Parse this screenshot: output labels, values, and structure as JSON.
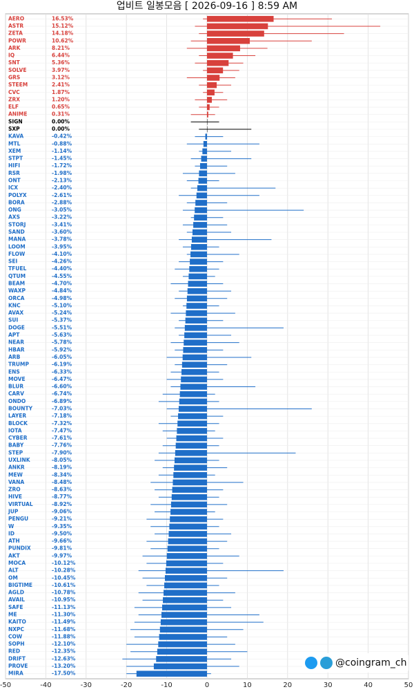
{
  "chart_data": {
    "type": "range_bar",
    "title": "업비트 일봉모음 [ 2026-09-16 ]  8:59 AM",
    "annotation": "@coingram_ch",
    "categories": [
      "AERO",
      "ASTR",
      "ZETA",
      "POWR",
      "ARK",
      "IQ",
      "SNT",
      "SOLVE",
      "GRS",
      "STEEM",
      "CVC",
      "ZRX",
      "ELF",
      "ANIME",
      "SIGN",
      "SXP",
      "KAVA",
      "MTL",
      "XEM",
      "STPT",
      "HIFI",
      "RSR",
      "ONT",
      "ICX",
      "POLYX",
      "BORA",
      "ONG",
      "AXS",
      "STORJ",
      "SAND",
      "MANA",
      "LOOM",
      "FLOW",
      "SEI",
      "TFUEL",
      "QTUM",
      "BEAM",
      "WAXP",
      "ORCA",
      "KNC",
      "AVAX",
      "SUI",
      "DOGE",
      "APT",
      "NEAR",
      "HBAR",
      "ARB",
      "TRUMP",
      "ENS",
      "MOVE",
      "BLUR",
      "CARV",
      "ONDO",
      "BOUNTY",
      "LAYER",
      "BLOCK",
      "IOTA",
      "CYBER",
      "BABY",
      "STEP",
      "UXLINK",
      "ANKR",
      "MEW",
      "VANA",
      "ZRO",
      "HIVE",
      "VIRTUAL",
      "JUP",
      "PENGU",
      "W",
      "ID",
      "ATH",
      "PUNDIX",
      "AKT",
      "MOCA",
      "ALT",
      "OM",
      "BIGTIME",
      "AGLD",
      "AVAIL",
      "SAFE",
      "ME",
      "KAITO",
      "NXPC",
      "COW",
      "SOPH",
      "RED",
      "DRIFT",
      "PROVE",
      "MIRA"
    ],
    "values": [
      16.53,
      15.12,
      14.18,
      10.62,
      8.21,
      6.44,
      5.36,
      3.97,
      3.12,
      2.41,
      1.87,
      1.2,
      0.65,
      0.31,
      0,
      0,
      -0.42,
      -0.88,
      -1.14,
      -1.45,
      -1.72,
      -1.98,
      -2.13,
      -2.4,
      -2.61,
      -2.88,
      -3.05,
      -3.22,
      -3.41,
      -3.6,
      -3.78,
      -3.95,
      -4.1,
      -4.26,
      -4.4,
      -4.55,
      -4.7,
      -4.84,
      -4.98,
      -5.1,
      -5.24,
      -5.37,
      -5.51,
      -5.63,
      -5.78,
      -5.92,
      -6.05,
      -6.19,
      -6.33,
      -6.47,
      -6.6,
      -6.74,
      -6.89,
      -7.03,
      -7.18,
      -7.32,
      -7.47,
      -7.61,
      -7.76,
      -7.9,
      -8.05,
      -8.19,
      -8.34,
      -8.48,
      -8.63,
      -8.77,
      -8.92,
      -9.06,
      -9.21,
      -9.35,
      -9.5,
      -9.66,
      -9.81,
      -9.97,
      -10.12,
      -10.28,
      -10.45,
      -10.61,
      -10.78,
      -10.95,
      -11.13,
      -11.3,
      -11.49,
      -11.68,
      -11.88,
      -12.1,
      -12.35,
      -12.63,
      -13.2,
      -17.5
    ],
    "value_labels": [
      "16.53%",
      "15.12%",
      "14.18%",
      "10.62%",
      "8.21%",
      "6.44%",
      "5.36%",
      "3.97%",
      "3.12%",
      "2.41%",
      "1.87%",
      "1.20%",
      "0.65%",
      "0.31%",
      "0.00%",
      "0.00%",
      "-0.42%",
      "-0.88%",
      "-1.14%",
      "-1.45%",
      "-1.72%",
      "-1.98%",
      "-2.13%",
      "-2.40%",
      "-2.61%",
      "-2.88%",
      "-3.05%",
      "-3.22%",
      "-3.41%",
      "-3.60%",
      "-3.78%",
      "-3.95%",
      "-4.10%",
      "-4.26%",
      "-4.40%",
      "-4.55%",
      "-4.70%",
      "-4.84%",
      "-4.98%",
      "-5.10%",
      "-5.24%",
      "-5.37%",
      "-5.51%",
      "-5.63%",
      "-5.78%",
      "-5.92%",
      "-6.05%",
      "-6.19%",
      "-6.33%",
      "-6.47%",
      "-6.60%",
      "-6.74%",
      "-6.89%",
      "-7.03%",
      "-7.18%",
      "-7.32%",
      "-7.47%",
      "-7.61%",
      "-7.76%",
      "-7.90%",
      "-8.05%",
      "-8.19%",
      "-8.34%",
      "-8.48%",
      "-8.63%",
      "-8.77%",
      "-8.92%",
      "-9.06%",
      "-9.21%",
      "-9.35%",
      "-9.50%",
      "-9.66%",
      "-9.81%",
      "-9.97%",
      "-10.12%",
      "-10.28%",
      "-10.45%",
      "-10.61%",
      "-10.78%",
      "-10.95%",
      "-11.13%",
      "-11.30%",
      "-11.49%",
      "-11.68%",
      "-11.88%",
      "-12.10%",
      "-12.35%",
      "-12.63%",
      "-13.20%",
      "-17.50%"
    ],
    "lows": [
      -1,
      -3,
      -2,
      -4,
      -5,
      -2,
      -3,
      -1,
      -5,
      -2,
      -1,
      -3,
      -2,
      -4,
      -4,
      -2,
      -3,
      -5,
      -2,
      -4,
      -3,
      -6,
      -5,
      -4,
      -7,
      -5,
      -6,
      -4,
      -6,
      -5,
      -7,
      -6,
      -5,
      -7,
      -8,
      -6,
      -9,
      -7,
      -8,
      -6,
      -9,
      -7,
      -8,
      -7,
      -9,
      -8,
      -10,
      -8,
      -9,
      -10,
      -9,
      -11,
      -12,
      -10,
      -9,
      -12,
      -11,
      -10,
      -11,
      -12,
      -13,
      -11,
      -12,
      -14,
      -13,
      -12,
      -14,
      -13,
      -15,
      -14,
      -13,
      -15,
      -14,
      -16,
      -15,
      -17,
      -16,
      -15,
      -17,
      -16,
      -18,
      -17,
      -18,
      -19,
      -18,
      -20,
      -19,
      -21,
      -20,
      -20
    ],
    "highs": [
      31,
      43,
      34,
      26,
      15,
      12,
      9,
      8,
      7,
      6,
      4,
      5,
      3,
      2,
      3,
      11,
      4,
      13,
      6,
      11,
      5,
      7,
      3,
      17,
      13,
      5,
      24,
      4,
      5,
      6,
      16,
      3,
      8,
      4,
      3,
      2,
      4,
      6,
      5,
      3,
      7,
      4,
      19,
      6,
      8,
      4,
      11,
      5,
      3,
      4,
      12,
      2,
      3,
      26,
      4,
      3,
      2,
      4,
      3,
      22,
      3,
      5,
      2,
      9,
      4,
      3,
      5,
      2,
      4,
      3,
      6,
      5,
      3,
      8,
      4,
      19,
      5,
      3,
      7,
      4,
      6,
      13,
      14,
      9,
      5,
      7,
      10,
      6,
      8,
      1
    ],
    "colors": {
      "up": "#d8413c",
      "flat": "#000000",
      "down": "#1f6ec8"
    },
    "xlim": [
      -50,
      50
    ],
    "xticks": [
      -50,
      -40,
      -30,
      -20,
      -10,
      0,
      10,
      20,
      30,
      40,
      50
    ],
    "grid": true
  }
}
